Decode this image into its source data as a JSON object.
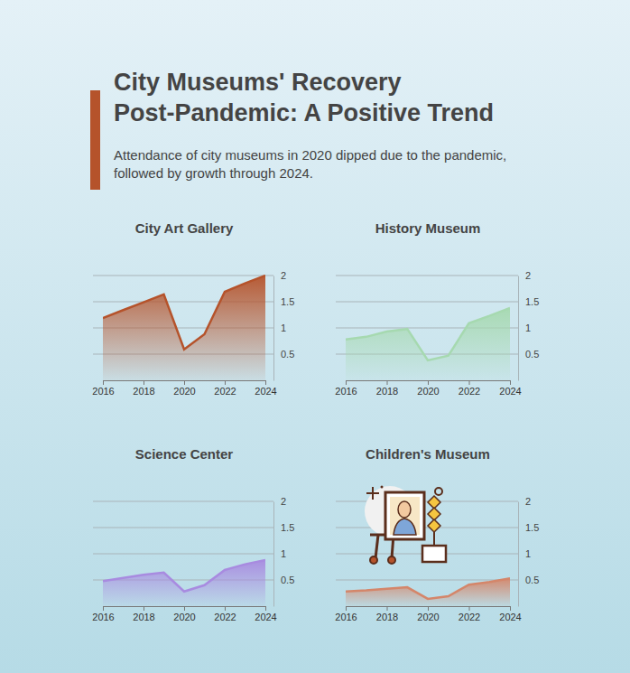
{
  "header": {
    "title": [
      "City Museums' Recovery",
      "Post-Pandemic: A Positive Trend"
    ],
    "subtitle": [
      "Attendance of city museums in 2020 dipped due to the pandemic,",
      "followed by growth through 2024."
    ]
  },
  "chart_data": [
    {
      "type": "area",
      "title": "City Art Gallery",
      "color": "#b5532b",
      "x": [
        2016,
        2017,
        2018,
        2019,
        2020,
        2021,
        2022,
        2023,
        2024
      ],
      "values": [
        1.19,
        1.34,
        1.49,
        1.64,
        0.59,
        0.88,
        1.69,
        1.85,
        2.0
      ],
      "xlim": [
        2016,
        2024
      ],
      "xticks": [
        2016,
        2018,
        2020,
        2022,
        2024
      ],
      "ylim": [
        0,
        2
      ],
      "yticks": [
        0.5,
        1,
        1.5,
        2
      ],
      "grid": true
    },
    {
      "type": "area",
      "title": "History Museum",
      "color": "#a6d9b0",
      "x": [
        2016,
        2017,
        2018,
        2019,
        2020,
        2021,
        2022,
        2023,
        2024
      ],
      "values": [
        0.78,
        0.83,
        0.93,
        0.98,
        0.38,
        0.47,
        1.09,
        1.23,
        1.38
      ],
      "xlim": [
        2016,
        2024
      ],
      "xticks": [
        2016,
        2018,
        2020,
        2022,
        2024
      ],
      "ylim": [
        0,
        2
      ],
      "yticks": [
        0.5,
        1,
        1.5,
        2
      ],
      "grid": true
    },
    {
      "type": "area",
      "title": "Science Center",
      "color": "#a88be0",
      "x": [
        2016,
        2017,
        2018,
        2019,
        2020,
        2021,
        2022,
        2023,
        2024
      ],
      "values": [
        0.48,
        0.54,
        0.6,
        0.64,
        0.28,
        0.4,
        0.69,
        0.8,
        0.88
      ],
      "xlim": [
        2016,
        2024
      ],
      "xticks": [
        2016,
        2018,
        2020,
        2022,
        2024
      ],
      "ylim": [
        0,
        2
      ],
      "yticks": [
        0.5,
        1,
        1.5,
        2
      ],
      "grid": true
    },
    {
      "type": "area",
      "title": "Children's Museum",
      "color": "#d4866a",
      "x": [
        2016,
        2017,
        2018,
        2019,
        2020,
        2021,
        2022,
        2023,
        2024
      ],
      "values": [
        0.28,
        0.3,
        0.33,
        0.36,
        0.14,
        0.19,
        0.41,
        0.46,
        0.53
      ],
      "xlim": [
        2016,
        2024
      ],
      "xticks": [
        2016,
        2018,
        2020,
        2022,
        2024
      ],
      "ylim": [
        0,
        2
      ],
      "yticks": [
        0.5,
        1,
        1.5,
        2
      ],
      "grid": true
    }
  ]
}
